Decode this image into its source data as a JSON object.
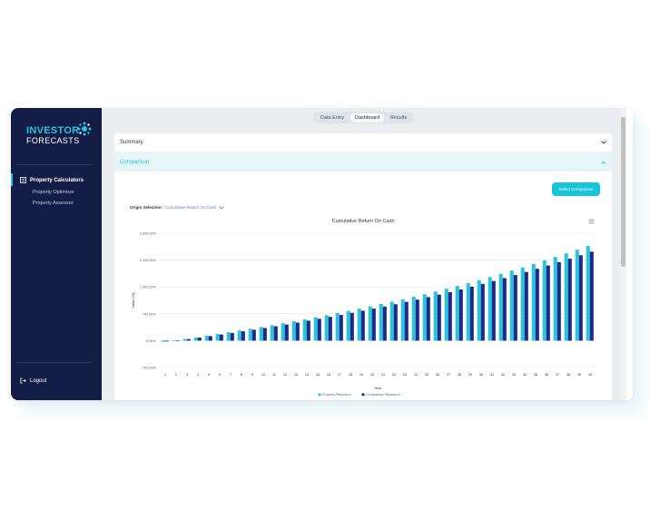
{
  "sidebar": {
    "logo_line1": "INVESTOR",
    "logo_line2": "FORECASTS",
    "nav_main": "Property Calculators",
    "nav_items": [
      "Property Optimiser",
      "Property Assessor"
    ],
    "logout": "Logout"
  },
  "tabs": [
    {
      "label": "Data Entry",
      "active": false
    },
    {
      "label": "Dashboard",
      "active": true
    },
    {
      "label": "Results",
      "active": false
    }
  ],
  "accordions": {
    "summary": "Summary",
    "comparison": "Comparison"
  },
  "select_button": "Select Comparison",
  "origin": {
    "label": "Origin Selection:",
    "value": "Cumulative Return On Cash"
  },
  "colors": {
    "sidebar_bg": "#131d45",
    "accent": "#19c3d8",
    "series_1": "#2bc4da",
    "series_2": "#1e2a8a"
  },
  "chart_data": {
    "type": "bar",
    "title": "Cumulative Return On Cash",
    "xlabel": "Year",
    "ylabel": "Value (%)",
    "ylim": [
      -700,
      2800
    ],
    "yticks": [
      -700,
      0,
      700,
      1400,
      2100,
      2800
    ],
    "ytick_labels": [
      "-700.00%",
      "0.00%",
      "700.00%",
      "1,400.00%",
      "2,100.00%",
      "2,800.00%"
    ],
    "categories": [
      "1",
      "2",
      "3",
      "4",
      "5",
      "6",
      "7",
      "8",
      "9",
      "10",
      "11",
      "12",
      "13",
      "14",
      "15",
      "16",
      "17",
      "18",
      "19",
      "20",
      "21",
      "22",
      "23",
      "24",
      "25",
      "26",
      "27",
      "28",
      "29",
      "30",
      "31",
      "32",
      "33",
      "34",
      "35",
      "36",
      "37",
      "38",
      "39",
      "40"
    ],
    "series": [
      {
        "name": "Property Research",
        "values": [
          -30,
          5,
          45,
          85,
          130,
          175,
          220,
          265,
          310,
          355,
          405,
          455,
          505,
          560,
          610,
          665,
          720,
          775,
          835,
          895,
          955,
          1015,
          1080,
          1145,
          1210,
          1280,
          1355,
          1425,
          1500,
          1575,
          1655,
          1740,
          1825,
          1910,
          2000,
          2090,
          2180,
          2275,
          2370,
          2470
        ]
      },
      {
        "name": "Comparison Research",
        "values": [
          -20,
          10,
          40,
          80,
          120,
          160,
          200,
          245,
          285,
          330,
          375,
          420,
          470,
          520,
          570,
          620,
          670,
          725,
          780,
          835,
          890,
          950,
          1010,
          1070,
          1135,
          1200,
          1265,
          1335,
          1405,
          1480,
          1555,
          1630,
          1710,
          1790,
          1875,
          1960,
          2045,
          2135,
          2225,
          2320
        ]
      }
    ],
    "legend": "bottom-center"
  }
}
